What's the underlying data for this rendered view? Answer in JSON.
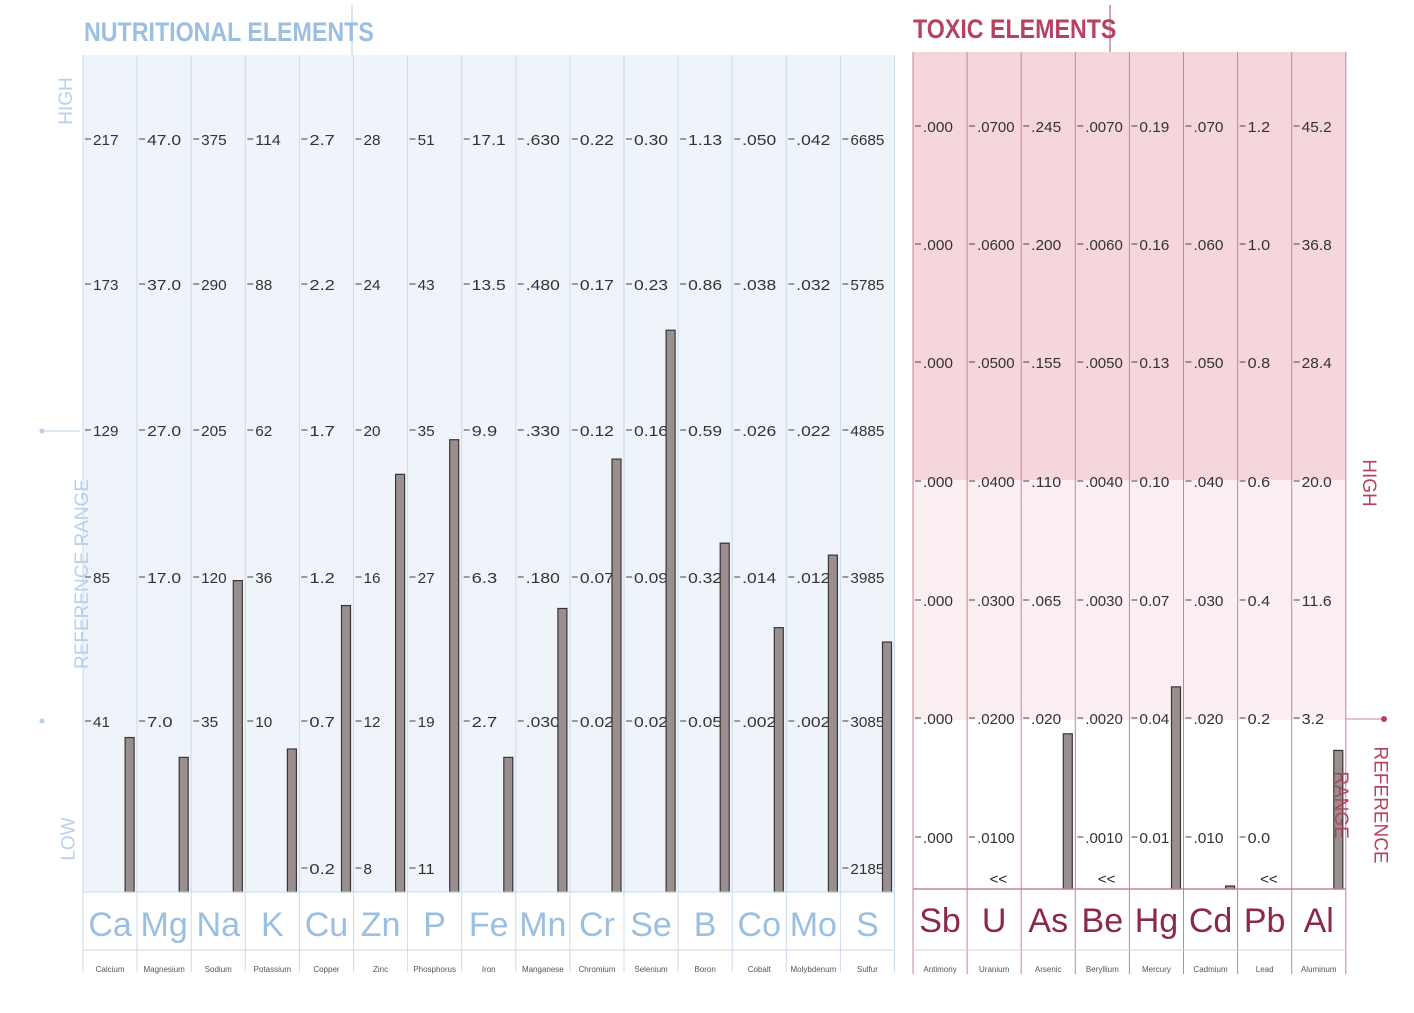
{
  "nutritional": {
    "title": "NUTRITIONAL ELEMENTS",
    "side_high": "HIGH",
    "side_ref": "REFERENCE RANGE",
    "side_low": "LOW"
  },
  "toxic": {
    "title": "TOXIC ELEMENTS",
    "side_high": "HIGH",
    "side_ref_1": "REFERENCE",
    "side_ref_2": "RANGE"
  },
  "colors": {
    "nut_bg": "#eef4fa",
    "nut_grid": "#c9dbee",
    "nut_text": "#9bbfe0",
    "tox_high_bg": "#f5d6dd",
    "tox_low_bg": "#fbeff2",
    "tox_grid": "#c78494",
    "tox_text": "#8d2848",
    "bar_fill": "#9a8f8f",
    "bar_stroke": "#3c3434"
  },
  "chart_data": [
    {
      "type": "bar",
      "title": "NUTRITIONAL ELEMENTS",
      "categories": [
        "Ca",
        "Mg",
        "Na",
        "K",
        "Cu",
        "Zn",
        "P",
        "Fe",
        "Mn",
        "Cr",
        "Se",
        "B",
        "Co",
        "Mo",
        "S"
      ],
      "names": [
        "Calcium",
        "Magnesium",
        "Sodium",
        "Potassium",
        "Copper",
        "Zinc",
        "Phosphorus",
        "Iron",
        "Manganese",
        "Chromium",
        "Selenium",
        "Boron",
        "Cobalt",
        "Molybdenum",
        "Sulfur"
      ],
      "tick_labels": [
        [
          "217",
          "173",
          "129",
          "85",
          "41"
        ],
        [
          "47.0",
          "37.0",
          "27.0",
          "17.0",
          "7.0"
        ],
        [
          "375",
          "290",
          "205",
          "120",
          "35"
        ],
        [
          "114",
          "88",
          "62",
          "36",
          "10"
        ],
        [
          "2.7",
          "2.2",
          "1.7",
          "1.2",
          "0.7",
          "0.2"
        ],
        [
          "28",
          "24",
          "20",
          "16",
          "12",
          "8"
        ],
        [
          "51",
          "43",
          "35",
          "27",
          "19",
          "11"
        ],
        [
          "17.1",
          "13.5",
          "9.9",
          "6.3",
          "2.7"
        ],
        [
          ".630",
          ".480",
          ".330",
          ".180",
          ".030"
        ],
        [
          "0.22",
          "0.17",
          "0.12",
          "0.07",
          "0.02"
        ],
        [
          "0.30",
          "0.23",
          "0.16",
          "0.09",
          "0.02"
        ],
        [
          "1.13",
          "0.86",
          "0.59",
          "0.32",
          "0.05"
        ],
        [
          ".050",
          ".038",
          ".026",
          ".014",
          ".002"
        ],
        [
          ".042",
          ".032",
          ".022",
          ".012",
          ".002"
        ],
        [
          "6685",
          "5785",
          "4885",
          "3985",
          "3085",
          "2185"
        ]
      ],
      "values": [
        36,
        4.5,
        117,
        5,
        1.1,
        18.8,
        34.5,
        1.8,
        0.146,
        0.11,
        0.208,
        0.38,
        0.0097,
        0.0134,
        3580
      ],
      "reference_range": "between the 41 and 129 level rows"
    },
    {
      "type": "bar",
      "title": "TOXIC ELEMENTS",
      "categories": [
        "Sb",
        "U",
        "As",
        "Be",
        "Hg",
        "Cd",
        "Pb",
        "Al"
      ],
      "names": [
        "Antimony",
        "Uranium",
        "Arsenic",
        "Beryllium",
        "Mercury",
        "Cadmium",
        "Lead",
        "Aluminum"
      ],
      "tick_labels": [
        [
          ".000",
          ".000",
          ".000",
          ".000",
          ".000",
          ".000",
          ".000"
        ],
        [
          ".0700",
          ".0600",
          ".0500",
          ".0400",
          ".0300",
          ".0200",
          ".0100"
        ],
        [
          ".245",
          ".200",
          ".155",
          ".110",
          ".065",
          ".020"
        ],
        [
          ".0070",
          ".0060",
          ".0050",
          ".0040",
          ".0030",
          ".0020",
          ".0010"
        ],
        [
          "0.19",
          "0.16",
          "0.13",
          "0.10",
          "0.07",
          "0.04",
          "0.01"
        ],
        [
          ".070",
          ".060",
          ".050",
          ".040",
          ".030",
          ".020",
          ".010"
        ],
        [
          "1.2",
          "1.0",
          "0.8",
          "0.6",
          "0.4",
          "0.2",
          "0.0"
        ],
        [
          "45.2",
          "36.8",
          "28.4",
          "20.0",
          "11.6",
          "3.2"
        ]
      ],
      "values": [
        null,
        null,
        0.014,
        null,
        0.048,
        0.0,
        null,
        0.9
      ],
      "marks": [
        "",
        "<<",
        "",
        "<<",
        "",
        "",
        "<<",
        ""
      ]
    }
  ]
}
